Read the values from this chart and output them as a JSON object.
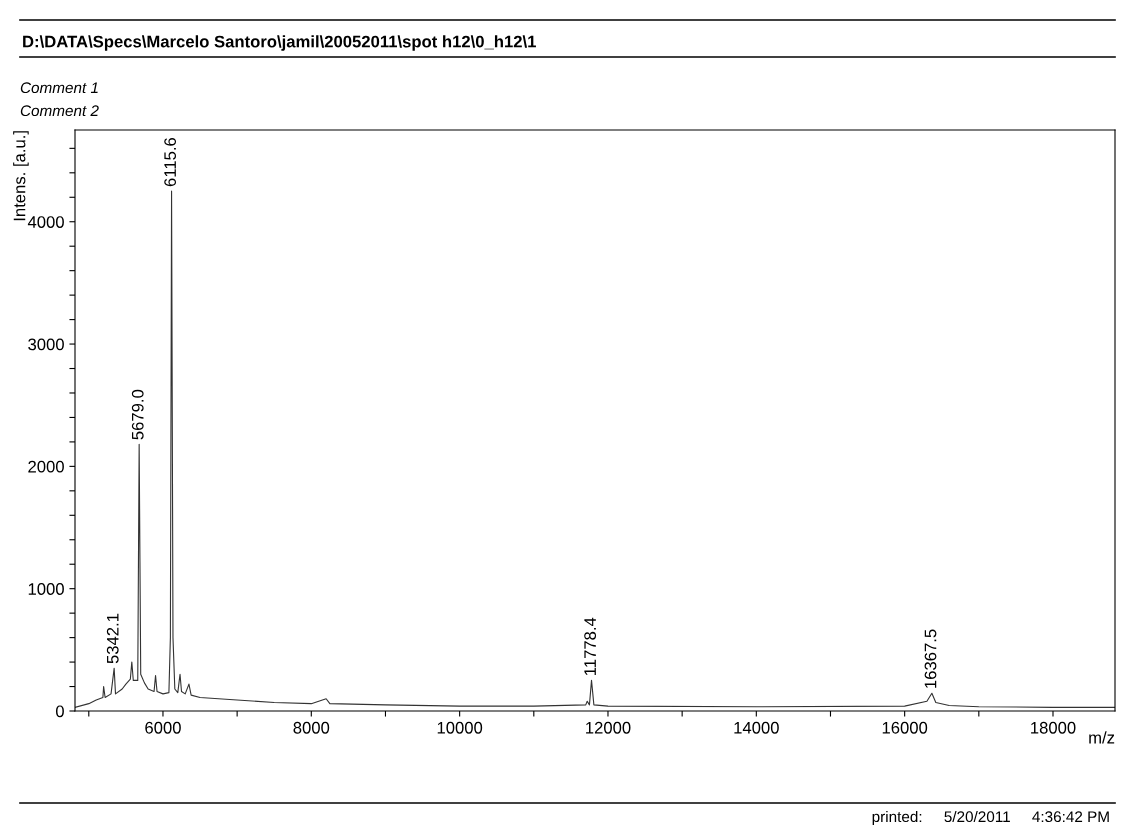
{
  "chart_data": {
    "type": "line",
    "title": "D:\\DATA\\Specs\\Marcelo Santoro\\jamil\\20052011\\spot h12\\0_h12\\1",
    "xlabel": "m/z",
    "ylabel": "Intens. [a.u.]",
    "x": [
      4814,
      5000,
      5100,
      5190,
      5200,
      5220,
      5300,
      5342,
      5360,
      5450,
      5500,
      5560,
      5580,
      5600,
      5660,
      5679,
      5700,
      5750,
      5800,
      5880,
      5900,
      5920,
      6000,
      6080,
      6100,
      6116,
      6135,
      6160,
      6200,
      6230,
      6250,
      6300,
      6350,
      6380,
      6500,
      7000,
      7500,
      8000,
      8200,
      8250,
      9000,
      10000,
      11000,
      11700,
      11720,
      11750,
      11778,
      11810,
      12000,
      14000,
      16000,
      16300,
      16367,
      16420,
      16600,
      17000,
      18000,
      18836
    ],
    "series": [
      {
        "color": "#333333",
        "values": [
          30,
          60,
          90,
          110,
          200,
          110,
          140,
          350,
          140,
          180,
          220,
          260,
          400,
          250,
          250,
          2180,
          300,
          230,
          180,
          160,
          290,
          160,
          140,
          150,
          600,
          4250,
          600,
          180,
          150,
          300,
          160,
          140,
          220,
          130,
          110,
          90,
          70,
          60,
          100,
          60,
          50,
          40,
          40,
          50,
          80,
          50,
          250,
          50,
          40,
          35,
          40,
          80,
          145,
          70,
          45,
          35,
          30,
          30
        ]
      }
    ],
    "xlim": [
      4814,
      18836
    ],
    "ylim": [
      0,
      4750
    ],
    "xticks": [
      {
        "value": 5000,
        "label": null
      },
      6000,
      {
        "value": 7000,
        "label": null
      },
      8000,
      {
        "value": 9000,
        "label": null
      },
      10000,
      {
        "value": 11000,
        "label": null
      },
      12000,
      {
        "value": 13000,
        "label": null
      },
      14000,
      {
        "value": 15000,
        "label": null
      },
      16000,
      {
        "value": 17000,
        "label": null
      },
      18000
    ],
    "yticks": [
      0,
      {
        "value": 200,
        "label": null
      },
      {
        "value": 400,
        "label": null
      },
      {
        "value": 600,
        "label": null
      },
      {
        "value": 800,
        "label": null
      },
      1000,
      {
        "value": 1200,
        "label": null
      },
      {
        "value": 1400,
        "label": null
      },
      {
        "value": 1600,
        "label": null
      },
      {
        "value": 1800,
        "label": null
      },
      2000,
      {
        "value": 2200,
        "label": null
      },
      {
        "value": 2400,
        "label": null
      },
      {
        "value": 2600,
        "label": null
      },
      {
        "value": 2800,
        "label": null
      },
      3000,
      {
        "value": 3200,
        "label": null
      },
      {
        "value": 3400,
        "label": null
      },
      {
        "value": 3600,
        "label": null
      },
      {
        "value": 3800,
        "label": null
      },
      4000,
      {
        "value": 4200,
        "label": null
      },
      {
        "value": 4400,
        "label": null
      },
      {
        "value": 4600,
        "label": null
      }
    ],
    "grid": false,
    "legend": false,
    "annotations": [
      "Comment 1",
      "Comment 2",
      "printed:     5/20/2011     4:36:42 PM",
      {
        "text": "5342.1",
        "x": 5342.1,
        "y": 350
      },
      {
        "text": "5679.0",
        "x": 5679.0,
        "y": 2180
      },
      {
        "text": "6115.6",
        "x": 6115.6,
        "y": 4250
      },
      {
        "text": "11778.4",
        "x": 11778.4,
        "y": 250
      },
      {
        "text": "16367.5",
        "x": 16367.5,
        "y": 145
      }
    ]
  }
}
